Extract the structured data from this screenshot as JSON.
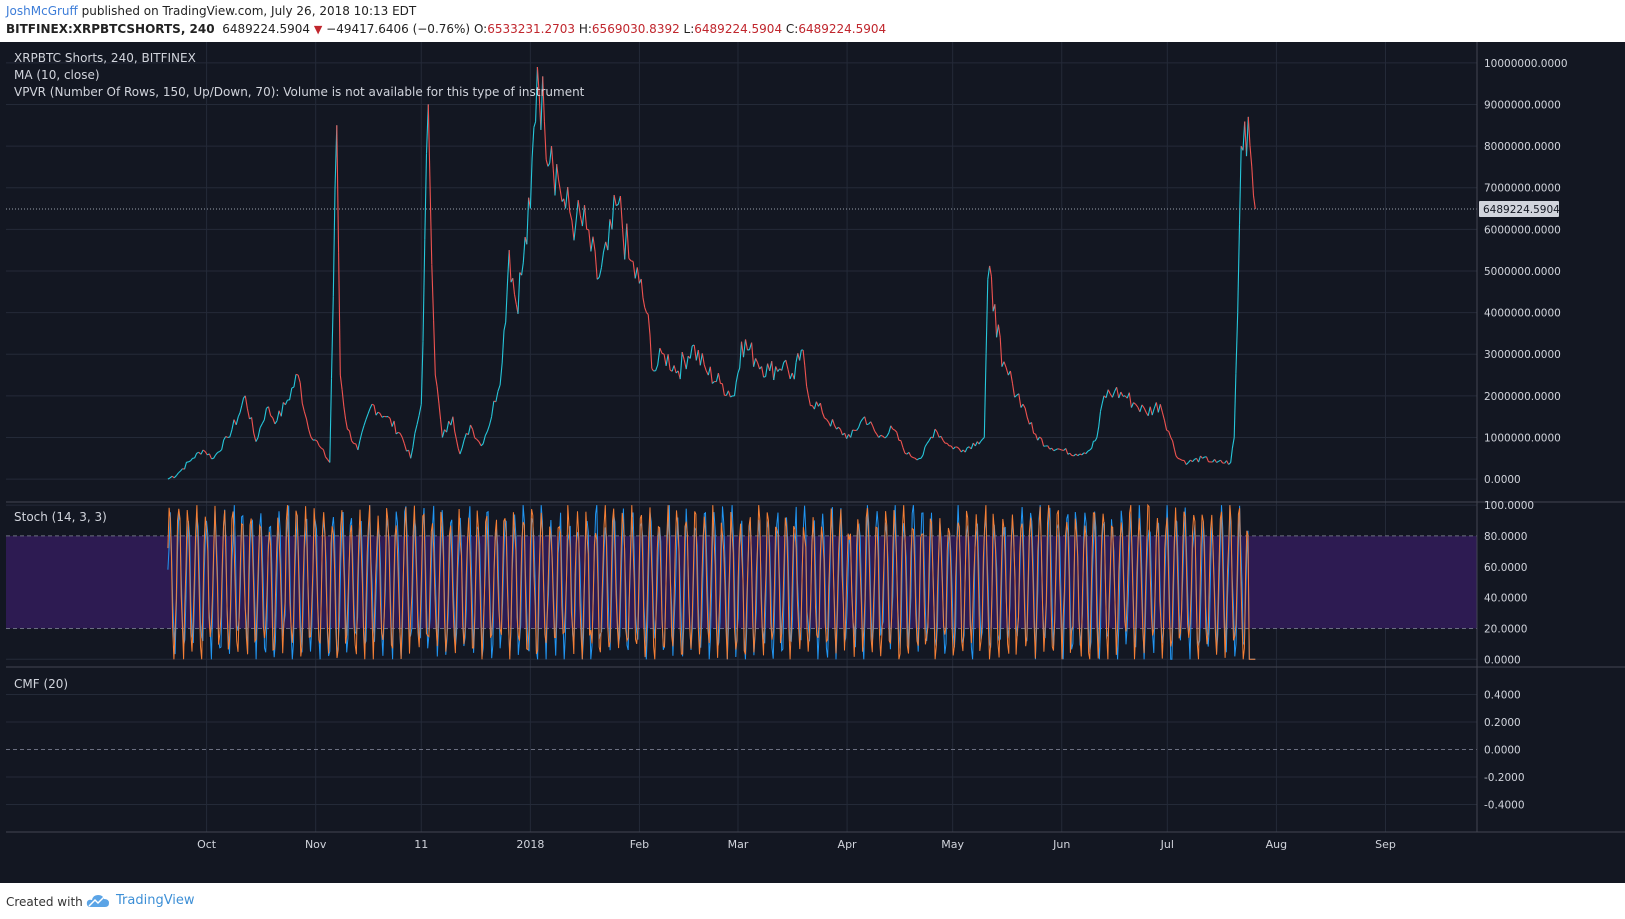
{
  "header": {
    "author": "JoshMcGruff",
    "published": " published on TradingView.com, July 26, 2018 10:13 EDT",
    "symbol": "BITFINEX:XRPBTCSHORTS, 240",
    "last": "6489224.5904",
    "down_glyph": "▼",
    "change": "−49417.6406 (−0.76%)",
    "o_label": "O:",
    "o_value": "6533231.2703",
    "h_label": "H:",
    "h_value": "6569030.8392",
    "l_label": "L:",
    "l_value": "6489224.5904",
    "c_label": "C:",
    "c_value": "6489224.5904"
  },
  "legend": {
    "main_title": "XRPBTC Shorts, 240, BITFINEX",
    "ma": "MA (10, close)",
    "vpvr": "VPVR (Number Of Rows, 150, Up/Down, 70): Volume is not available for this type of instrument",
    "stoch": "Stoch (14, 3, 3)",
    "cmf": "CMF (20)"
  },
  "footer": {
    "created": "Created with",
    "brand": "TradingView"
  },
  "colors": {
    "background": "#131722",
    "grid": "#242a38",
    "up": "#26c6da",
    "down": "#ef5350",
    "stoch_k": "#2196f3",
    "stoch_d": "#f57f35",
    "stoch_band": "#2d1b52",
    "axis_text": "#d1d4dc",
    "price_tag_bg": "#d1d4dc"
  },
  "chart_data": [
    {
      "type": "line",
      "name_printed": "XRPBTC Shorts, 240, BITFINEX",
      "x_axis": {
        "tick_labels": [
          "Oct",
          "Nov",
          "11",
          "2018",
          "Feb",
          "Mar",
          "Apr",
          "May",
          "Jun",
          "Jul",
          "Aug",
          "Sep"
        ],
        "tick_dates": [
          "2017-10-01",
          "2017-11-01",
          "2017-12-01",
          "2018-01-01",
          "2018-02-01",
          "2018-03-01",
          "2018-04-01",
          "2018-05-01",
          "2018-06-01",
          "2018-07-01",
          "2018-08-01",
          "2018-09-01"
        ],
        "range": [
          "2017-08-05",
          "2018-09-27"
        ]
      },
      "y_axis": {
        "ticks": [
          0,
          1000000,
          2000000,
          3000000,
          4000000,
          5000000,
          6000000,
          7000000,
          8000000,
          9000000,
          10000000
        ],
        "tick_labels": [
          "0.0000",
          "1000000.0000",
          "2000000.0000",
          "3000000.0000",
          "4000000.0000",
          "5000000.0000",
          "6000000.0000",
          "7000000.0000",
          "8000000.0000",
          "9000000.0000",
          "10000000.0000"
        ],
        "range": [
          -550000,
          10500000
        ]
      },
      "last_price": 6489224.5904,
      "last_price_label": "6489224.5904",
      "grid": true,
      "series": [
        {
          "values": [
            [
              "2017-09-20",
              0
            ],
            [
              "2017-09-23",
              150000
            ],
            [
              "2017-09-27",
              500000
            ],
            [
              "2017-09-30",
              700000
            ],
            [
              "2017-10-03",
              500000
            ],
            [
              "2017-10-07",
              1000000
            ],
            [
              "2017-10-10",
              1500000
            ],
            [
              "2017-10-12",
              2000000
            ],
            [
              "2017-10-15",
              900000
            ],
            [
              "2017-10-18",
              1700000
            ],
            [
              "2017-10-21",
              1400000
            ],
            [
              "2017-10-24",
              1900000
            ],
            [
              "2017-10-27",
              2500000
            ],
            [
              "2017-10-30",
              1200000
            ],
            [
              "2017-11-02",
              800000
            ],
            [
              "2017-11-05",
              400000
            ],
            [
              "2017-11-07",
              8500000
            ],
            [
              "2017-11-08",
              2500000
            ],
            [
              "2017-11-10",
              1200000
            ],
            [
              "2017-11-13",
              700000
            ],
            [
              "2017-11-17",
              1800000
            ],
            [
              "2017-11-21",
              1500000
            ],
            [
              "2017-11-25",
              1100000
            ],
            [
              "2017-11-28",
              500000
            ],
            [
              "2017-12-01",
              1800000
            ],
            [
              "2017-12-03",
              9000000
            ],
            [
              "2017-12-05",
              2500000
            ],
            [
              "2017-12-07",
              1000000
            ],
            [
              "2017-12-10",
              1500000
            ],
            [
              "2017-12-12",
              600000
            ],
            [
              "2017-12-15",
              1300000
            ],
            [
              "2017-12-18",
              800000
            ],
            [
              "2017-12-21",
              1500000
            ],
            [
              "2017-12-24",
              2800000
            ],
            [
              "2017-12-26",
              5500000
            ],
            [
              "2017-12-28",
              4200000
            ],
            [
              "2017-12-30",
              5200000
            ],
            [
              "2018-01-01",
              6500000
            ],
            [
              "2018-01-03",
              9900000
            ],
            [
              "2018-01-05",
              8600000
            ],
            [
              "2018-01-07",
              8000000
            ],
            [
              "2018-01-09",
              7200000
            ],
            [
              "2018-01-11",
              6500000
            ],
            [
              "2018-01-14",
              6200000
            ],
            [
              "2018-01-17",
              6000000
            ],
            [
              "2018-01-20",
              4800000
            ],
            [
              "2018-01-23",
              5500000
            ],
            [
              "2018-01-26",
              6600000
            ],
            [
              "2018-01-29",
              5300000
            ],
            [
              "2018-02-01",
              4700000
            ],
            [
              "2018-02-03",
              4000000
            ],
            [
              "2018-02-05",
              2600000
            ],
            [
              "2018-02-08",
              3000000
            ],
            [
              "2018-02-12",
              2600000
            ],
            [
              "2018-02-16",
              3200000
            ],
            [
              "2018-02-20",
              2600000
            ],
            [
              "2018-02-24",
              2300000
            ],
            [
              "2018-02-28",
              2000000
            ],
            [
              "2018-03-02",
              3300000
            ],
            [
              "2018-03-06",
              2900000
            ],
            [
              "2018-03-10",
              2600000
            ],
            [
              "2018-03-14",
              2800000
            ],
            [
              "2018-03-17",
              2400000
            ],
            [
              "2018-03-19",
              3100000
            ],
            [
              "2018-03-21",
              2000000
            ],
            [
              "2018-03-25",
              1600000
            ],
            [
              "2018-03-29",
              1200000
            ],
            [
              "2018-04-02",
              1000000
            ],
            [
              "2018-04-06",
              1500000
            ],
            [
              "2018-04-10",
              1000000
            ],
            [
              "2018-04-14",
              1200000
            ],
            [
              "2018-04-18",
              600000
            ],
            [
              "2018-04-22",
              500000
            ],
            [
              "2018-04-26",
              1200000
            ],
            [
              "2018-04-30",
              800000
            ],
            [
              "2018-05-04",
              700000
            ],
            [
              "2018-05-08",
              900000
            ],
            [
              "2018-05-10",
              1000000
            ],
            [
              "2018-05-11",
              4800000
            ],
            [
              "2018-05-13",
              4200000
            ],
            [
              "2018-05-15",
              2700000
            ],
            [
              "2018-05-18",
              2300000
            ],
            [
              "2018-05-21",
              1800000
            ],
            [
              "2018-05-24",
              1100000
            ],
            [
              "2018-05-28",
              800000
            ],
            [
              "2018-06-01",
              700000
            ],
            [
              "2018-06-05",
              600000
            ],
            [
              "2018-06-09",
              700000
            ],
            [
              "2018-06-11",
              1000000
            ],
            [
              "2018-06-13",
              2000000
            ],
            [
              "2018-06-16",
              2100000
            ],
            [
              "2018-06-19",
              2000000
            ],
            [
              "2018-06-22",
              1800000
            ],
            [
              "2018-06-25",
              1600000
            ],
            [
              "2018-06-29",
              1800000
            ],
            [
              "2018-07-02",
              1000000
            ],
            [
              "2018-07-04",
              500000
            ],
            [
              "2018-07-07",
              400000
            ],
            [
              "2018-07-11",
              500000
            ],
            [
              "2018-07-15",
              400000
            ],
            [
              "2018-07-19",
              400000
            ],
            [
              "2018-07-20",
              1000000
            ],
            [
              "2018-07-21",
              4000000
            ],
            [
              "2018-07-22",
              8000000
            ],
            [
              "2018-07-24",
              8700000
            ],
            [
              "2018-07-25",
              7500000
            ],
            [
              "2018-07-26",
              6489224.5904
            ]
          ]
        }
      ]
    },
    {
      "type": "line",
      "name_printed": "Stoch (14, 3, 3)",
      "y_axis": {
        "ticks": [
          0,
          20,
          40,
          60,
          80,
          100
        ],
        "tick_labels": [
          "0.0000",
          "20.0000",
          "40.0000",
          "60.0000",
          "80.0000",
          "100.0000"
        ],
        "range": [
          -5,
          102
        ]
      },
      "band": [
        20,
        80
      ],
      "x_range": [
        "2017-09-20",
        "2018-07-26"
      ],
      "oscillation_cycles": 120,
      "final_value": 0
    },
    {
      "type": "line",
      "name_printed": "CMF (20)",
      "y_axis": {
        "ticks": [
          -0.4,
          -0.2,
          0,
          0.2,
          0.4
        ],
        "tick_labels": [
          "-0.4000",
          "-0.2000",
          "0.0000",
          "0.2000",
          "0.4000"
        ],
        "range": [
          -0.6,
          0.6
        ]
      },
      "dashed_zero_line": true
    }
  ]
}
